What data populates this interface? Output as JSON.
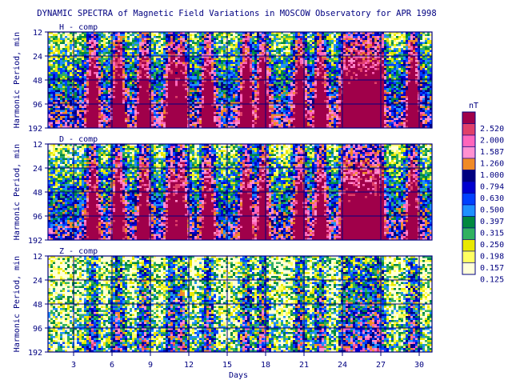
{
  "chart_data": {
    "type": "heatmap",
    "title": "DYNAMIC SPECTRA of Magnetic Field Variations in MOSCOW Observatory for APR 1998",
    "ylabel": "Harmonic Period, min",
    "xlabel": "Days",
    "panels": [
      {
        "label": "H - comp",
        "intensity": 1.0
      },
      {
        "label": "D - comp",
        "intensity": 0.95
      },
      {
        "label": "Z - comp",
        "intensity": 0.55
      }
    ],
    "y_ticks": [
      "12",
      "24",
      "48",
      "96",
      "192"
    ],
    "x_ticks": [
      3,
      6,
      9,
      12,
      15,
      18,
      21,
      24,
      27,
      30
    ],
    "x_range": [
      1,
      31
    ],
    "legend": {
      "unit": "nT",
      "levels": [
        {
          "label": "2.520",
          "color": "#a0004a"
        },
        {
          "label": "2.000",
          "color": "#e0406a"
        },
        {
          "label": "1.587",
          "color": "#ff66bb"
        },
        {
          "label": "1.260",
          "color": "#ff90d0"
        },
        {
          "label": "1.000",
          "color": "#f08a28"
        },
        {
          "label": "0.794",
          "color": "#000080"
        },
        {
          "label": "0.630",
          "color": "#0000d0"
        },
        {
          "label": "0.500",
          "color": "#0040ff"
        },
        {
          "label": "0.397",
          "color": "#1e90ff"
        },
        {
          "label": "0.315",
          "color": "#008840"
        },
        {
          "label": "0.250",
          "color": "#30b060"
        },
        {
          "label": "0.198",
          "color": "#e8e800"
        },
        {
          "label": "0.157",
          "color": "#ffff60"
        },
        {
          "label": "0.125",
          "color": "#ffffd8"
        }
      ]
    },
    "active_days": [
      4.5,
      6.5,
      8.5,
      10.7,
      11.4,
      13.5,
      16.5,
      17.8,
      20.7,
      22.3,
      24.3,
      25.5,
      26.8,
      29.5
    ]
  }
}
